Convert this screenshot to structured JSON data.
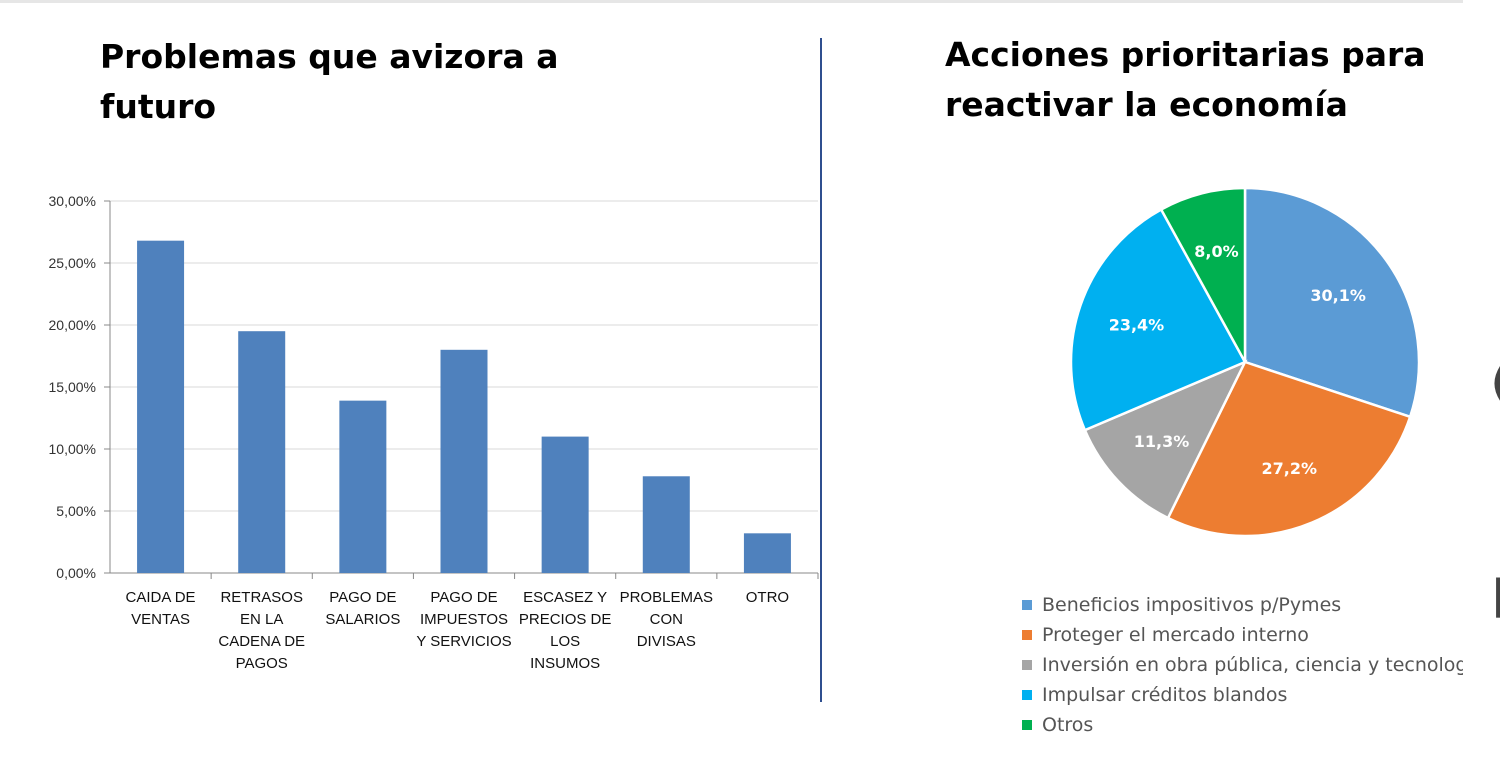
{
  "edge_fragments": [
    "(",
    "|"
  ],
  "chart_data": [
    {
      "type": "bar",
      "title_lines": [
        "Problemas que avizora a",
        "futuro"
      ],
      "categories": [
        [
          "CAIDA DE",
          "VENTAS"
        ],
        [
          "RETRASOS",
          "EN LA",
          "CADENA DE",
          "PAGOS"
        ],
        [
          "PAGO DE",
          "SALARIOS"
        ],
        [
          "PAGO DE",
          "IMPUESTOS",
          "Y SERVICIOS"
        ],
        [
          "ESCASEZ Y",
          "PRECIOS DE",
          "LOS",
          "INSUMOS"
        ],
        [
          "PROBLEMAS",
          "CON",
          "DIVISAS"
        ],
        [
          "OTRO"
        ]
      ],
      "values": [
        0.268,
        0.195,
        0.139,
        0.18,
        0.11,
        0.078,
        0.032
      ],
      "ylim": [
        0,
        0.3
      ],
      "yticks": [
        0,
        0.05,
        0.1,
        0.15,
        0.2,
        0.25,
        0.3
      ],
      "ytick_labels": [
        "0,00%",
        "5,00%",
        "10,00%",
        "15,00%",
        "20,00%",
        "25,00%",
        "30,00%"
      ],
      "grid": true,
      "bar_color": "#4f81bd",
      "grid_color": "#d9d9d9",
      "xlabel": "",
      "ylabel": ""
    },
    {
      "type": "pie",
      "title_lines": [
        "Acciones prioritarias para",
        "reactivar la economía"
      ],
      "slices": [
        {
          "label": "Beneficios impositivos p/Pymes",
          "value": 30.1,
          "value_label": "30,1%",
          "color": "#5b9bd5"
        },
        {
          "label": "Proteger el mercado interno",
          "value": 27.2,
          "value_label": "27,2%",
          "color": "#ed7d31"
        },
        {
          "label": "Inversión en obra pública, ciencia y tecnología",
          "value": 11.3,
          "value_label": "11,3%",
          "color": "#a5a5a5"
        },
        {
          "label": "Impulsar créditos blandos",
          "value": 23.4,
          "value_label": "23,4%",
          "color": "#00b0f0"
        },
        {
          "label": "Otros",
          "value": 8.0,
          "value_label": "8,0%",
          "color": "#00b050"
        }
      ],
      "start_angle": "12 o'clock, clockwise",
      "legend_position": "bottom"
    }
  ]
}
